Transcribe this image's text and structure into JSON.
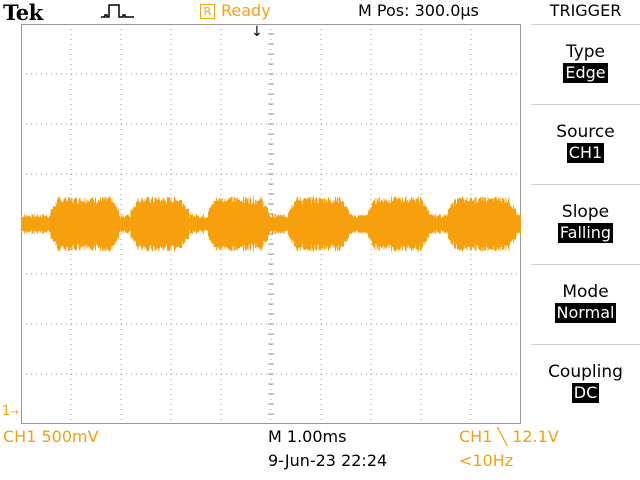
{
  "header": {
    "brand": "Tek",
    "acq_icon": "acquisition-pulse-icon",
    "status_badge": "R",
    "status": "Ready",
    "m_pos": "M Pos: 300.0µs"
  },
  "menu": {
    "title": "TRIGGER",
    "items": [
      {
        "label": "Type",
        "value": "Edge"
      },
      {
        "label": "Source",
        "value": "CH1"
      },
      {
        "label": "Slope",
        "value": "Falling"
      },
      {
        "label": "Mode",
        "value": "Normal"
      },
      {
        "label": "Coupling",
        "value": "DC"
      }
    ]
  },
  "footer": {
    "ch1_scale": "CH1  500mV",
    "timebase": "M 1.00ms",
    "datetime": "9-Jun-23 22:24",
    "trigger": "CH1 ╲ 12.1V",
    "freq": "<10Hz"
  },
  "markers": {
    "ch1": "1",
    "trigger_pos": "↓"
  },
  "colors": {
    "trace": "#f7a00d",
    "grid": "#9a9a9a",
    "background": "#ffffff"
  },
  "chart_data": {
    "type": "line",
    "grid": true,
    "divisions": [
      10,
      8
    ],
    "series": [
      {
        "color": "#f7a00d",
        "bursts_ms": [
          [
            0.6,
            1.95
          ],
          [
            2.2,
            3.35
          ],
          [
            3.75,
            4.95
          ],
          [
            5.35,
            6.55
          ],
          [
            6.95,
            8.15
          ],
          [
            8.55,
            9.9
          ]
        ],
        "burst_peak_div": 0.55,
        "gap_level_div": 0.2,
        "center_div": 0.0,
        "xlim_ms": [
          0,
          10
        ]
      }
    ]
  }
}
